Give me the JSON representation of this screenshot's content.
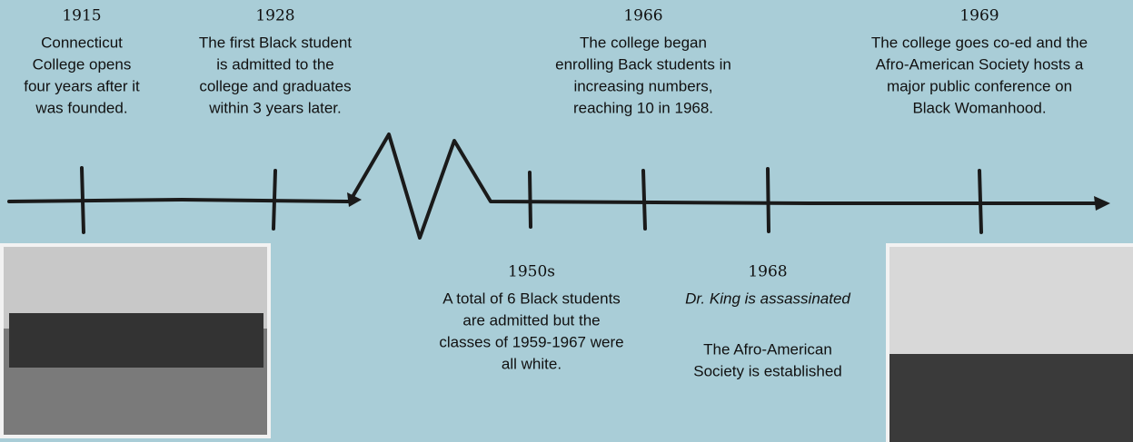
{
  "events_top": [
    {
      "year": "1915",
      "lines": [
        "Connecticut",
        "College opens",
        "four years after it",
        "was founded."
      ]
    },
    {
      "year": "1928",
      "lines": [
        "The first Black student",
        "is admitted to the",
        "college and graduates",
        "within 3 years later."
      ]
    },
    {
      "year": "1966",
      "lines": [
        "The college began",
        "enrolling Back students in",
        "increasing numbers,",
        "reaching 10 in 1968."
      ]
    },
    {
      "year": "1969",
      "lines": [
        "The college goes co-ed and the",
        "Afro-American Society hosts a",
        "major public conference on",
        "Black Womanhood."
      ]
    }
  ],
  "events_bottom": [
    {
      "year": "1950s",
      "lines": [
        "A total of 6 Black students",
        "are admitted but the",
        "classes of 1959-1967 were",
        "all white."
      ]
    },
    {
      "year": "1968",
      "note": "Dr. King is assassinated",
      "lines": [
        "The Afro-American",
        "Society is established"
      ]
    }
  ]
}
